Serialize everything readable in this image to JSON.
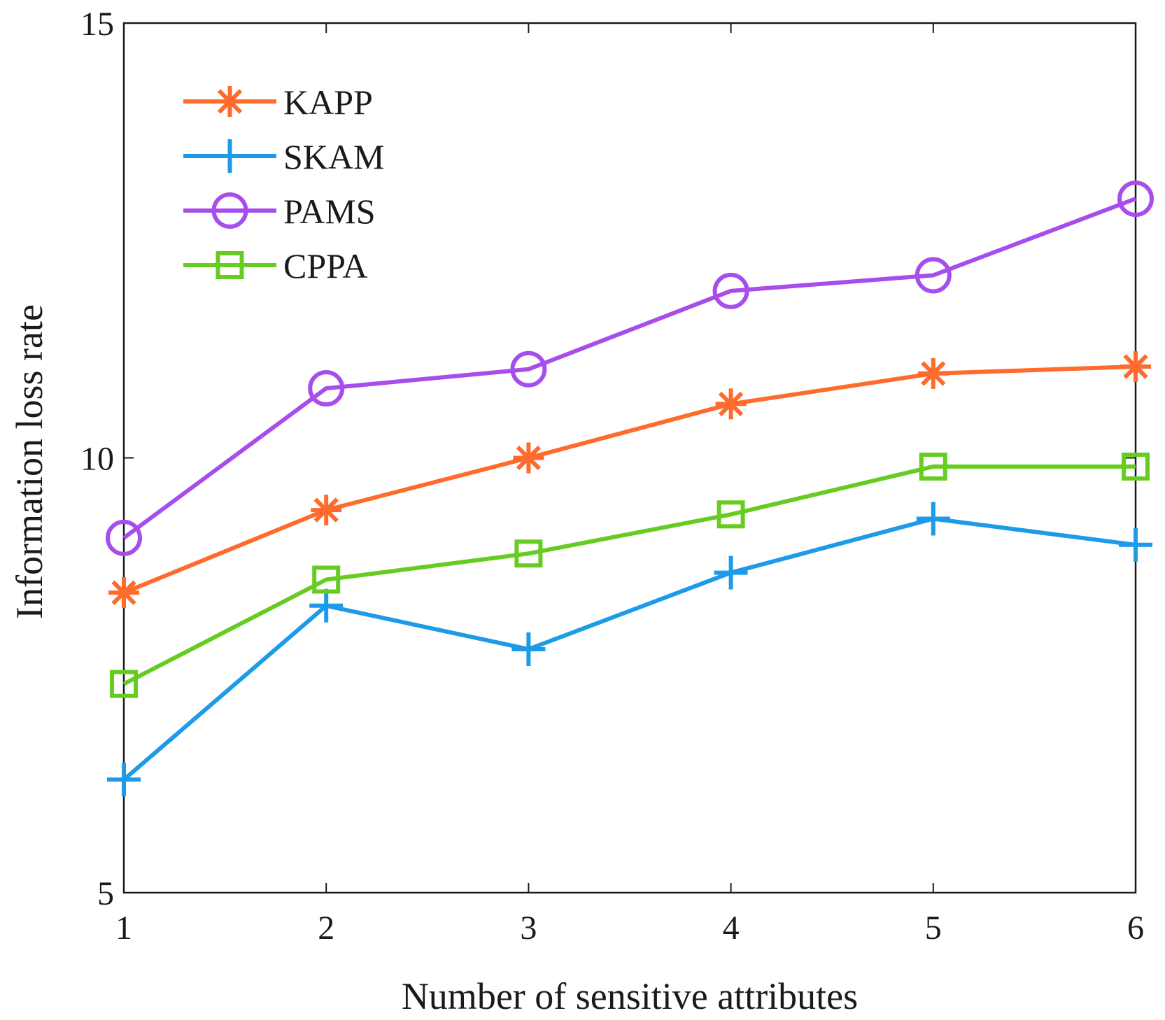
{
  "chart_data": {
    "type": "line",
    "title": "",
    "xlabel": "Number of sensitive attributes",
    "ylabel": "Information loss rate",
    "x": [
      1,
      2,
      3,
      4,
      5,
      6
    ],
    "xlim": [
      1,
      6
    ],
    "ylim": [
      5,
      15
    ],
    "xticks": [
      "1",
      "2",
      "3",
      "4",
      "5",
      "6"
    ],
    "yticks": [
      "5",
      "10",
      "15"
    ],
    "grid": false,
    "legend_position": "top-left",
    "series": [
      {
        "name": "KAPP",
        "marker": "asterisk",
        "color": "#FF6B2C",
        "values": [
          8.45,
          9.4,
          10.0,
          10.62,
          10.97,
          11.05
        ]
      },
      {
        "name": "SKAM",
        "marker": "plus",
        "color": "#1E9BE8",
        "values": [
          6.3,
          8.3,
          7.8,
          8.68,
          9.3,
          9.0
        ]
      },
      {
        "name": "PAMS",
        "marker": "circle",
        "color": "#A64DEB",
        "values": [
          9.08,
          10.8,
          11.02,
          11.92,
          12.1,
          12.98
        ]
      },
      {
        "name": "CPPA",
        "marker": "square",
        "color": "#66CC22",
        "values": [
          7.4,
          8.6,
          8.9,
          9.35,
          9.9,
          9.9
        ]
      }
    ]
  }
}
